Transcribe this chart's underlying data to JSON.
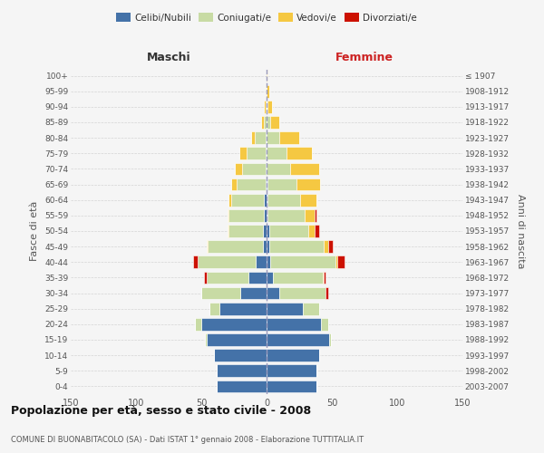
{
  "age_groups": [
    "0-4",
    "5-9",
    "10-14",
    "15-19",
    "20-24",
    "25-29",
    "30-34",
    "35-39",
    "40-44",
    "45-49",
    "50-54",
    "55-59",
    "60-64",
    "65-69",
    "70-74",
    "75-79",
    "80-84",
    "85-89",
    "90-94",
    "95-99",
    "100+"
  ],
  "birth_years": [
    "2003-2007",
    "1998-2002",
    "1993-1997",
    "1988-1992",
    "1983-1987",
    "1978-1982",
    "1973-1977",
    "1968-1972",
    "1963-1967",
    "1958-1962",
    "1953-1957",
    "1948-1952",
    "1943-1947",
    "1938-1942",
    "1933-1937",
    "1928-1932",
    "1923-1927",
    "1918-1922",
    "1913-1917",
    "1908-1912",
    "≤ 1907"
  ],
  "colors": {
    "celibe": "#4472a8",
    "coniugato": "#c8dba4",
    "vedovo": "#f5c842",
    "divorziato": "#cc1100"
  },
  "males": {
    "celibe": [
      38,
      38,
      40,
      46,
      50,
      36,
      20,
      14,
      8,
      3,
      3,
      2,
      2,
      1,
      1,
      1,
      1,
      0,
      0,
      0,
      0
    ],
    "coniugato": [
      0,
      0,
      0,
      1,
      5,
      8,
      30,
      32,
      45,
      42,
      26,
      27,
      25,
      22,
      18,
      14,
      8,
      2,
      1,
      0,
      0
    ],
    "vedovo": [
      0,
      0,
      0,
      0,
      0,
      0,
      0,
      0,
      0,
      1,
      1,
      1,
      2,
      4,
      5,
      6,
      3,
      2,
      1,
      1,
      0
    ],
    "divorziato": [
      0,
      0,
      0,
      0,
      0,
      0,
      0,
      2,
      3,
      0,
      0,
      0,
      0,
      0,
      0,
      0,
      0,
      0,
      0,
      0,
      0
    ]
  },
  "females": {
    "nubile": [
      38,
      38,
      40,
      48,
      42,
      28,
      10,
      5,
      3,
      2,
      2,
      1,
      1,
      1,
      0,
      0,
      0,
      0,
      0,
      0,
      0
    ],
    "coniugata": [
      0,
      0,
      0,
      1,
      5,
      12,
      35,
      38,
      50,
      42,
      30,
      28,
      25,
      22,
      18,
      15,
      10,
      3,
      1,
      0,
      0
    ],
    "vedova": [
      0,
      0,
      0,
      0,
      0,
      0,
      0,
      1,
      1,
      3,
      5,
      8,
      12,
      18,
      22,
      20,
      15,
      7,
      3,
      2,
      1
    ],
    "divorziata": [
      0,
      0,
      0,
      0,
      0,
      0,
      2,
      1,
      6,
      4,
      3,
      1,
      0,
      0,
      0,
      0,
      0,
      0,
      0,
      0,
      0
    ]
  },
  "xlim": 150,
  "title": "Popolazione per età, sesso e stato civile - 2008",
  "subtitle": "COMUNE DI BUONABITACOLO (SA) - Dati ISTAT 1° gennaio 2008 - Elaborazione TUTTITALIA.IT",
  "xlabel_left": "Maschi",
  "xlabel_right": "Femmine",
  "ylabel_left": "Fasce di età",
  "ylabel_right": "Anni di nascita",
  "legend_labels": [
    "Celibi/Nubili",
    "Coniugati/e",
    "Vedovi/e",
    "Divorziati/e"
  ],
  "bg_color": "#f5f5f5",
  "grid_color": "#cccccc"
}
